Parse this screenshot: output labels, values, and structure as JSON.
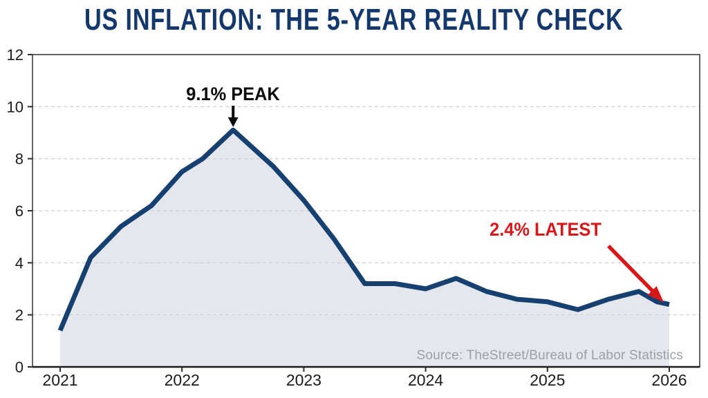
{
  "page": {
    "title": "US INFLATION: THE 5-YEAR REALITY CHECK",
    "source": "Source: TheStreet/Bureau of Labor Statistics"
  },
  "colors": {
    "title": "#14386B",
    "line": "#16406F",
    "area_fill": "#E4E8EE",
    "grid": "#CCCCCC",
    "border": "#3C3C3C",
    "bottom_axis": "#1B1B1B",
    "tick": "#2C2C2C",
    "axis_text": "#1B1B1B",
    "annotation_peak": "#0A0A0A",
    "annotation_latest": "#D6181B",
    "source_text": "#9AA0A8"
  },
  "chart_data": {
    "type": "area",
    "title": "US INFLATION: THE 5-YEAR REALITY CHECK",
    "xlabel": "",
    "ylabel": "",
    "x": [
      2021.0,
      2021.25,
      2021.5,
      2021.75,
      2022.0,
      2022.17,
      2022.42,
      2022.75,
      2023.0,
      2023.25,
      2023.5,
      2023.75,
      2024.0,
      2024.25,
      2024.5,
      2024.75,
      2025.0,
      2025.25,
      2025.5,
      2025.75,
      2025.9,
      2026.0
    ],
    "values": [
      1.4,
      4.2,
      5.4,
      6.2,
      7.5,
      8.0,
      9.1,
      7.7,
      6.4,
      4.9,
      3.2,
      3.2,
      3.0,
      3.4,
      2.9,
      2.6,
      2.5,
      2.2,
      2.6,
      2.9,
      2.5,
      2.4
    ],
    "x_ticks": [
      2021,
      2022,
      2023,
      2024,
      2025,
      2026
    ],
    "y_ticks": [
      0,
      2,
      4,
      6,
      8,
      10,
      12
    ],
    "ylim": [
      0,
      12
    ],
    "xlim": [
      2020.77,
      2026.25
    ],
    "grid": "horizontal-dashed",
    "legend": "none",
    "annotations": [
      {
        "id": "peak",
        "text": "9.1% PEAK",
        "target_x": 2022.42,
        "target_y": 9.1,
        "arrow": "black-down"
      },
      {
        "id": "latest",
        "text": "2.4% LATEST",
        "target_x": 2026.0,
        "target_y": 2.4,
        "arrow": "red-diagonal"
      }
    ],
    "source": "Source: TheStreet/Bureau of Labor Statistics"
  }
}
